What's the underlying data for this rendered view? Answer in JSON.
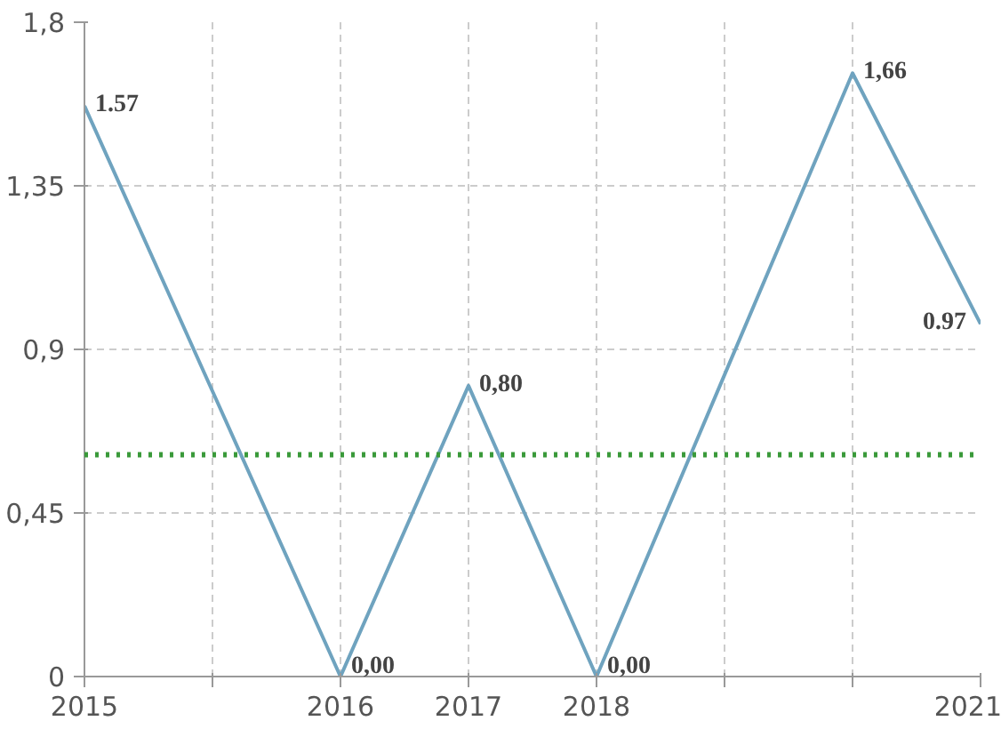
{
  "chart_data": {
    "type": "line",
    "categories": [
      "2015",
      null,
      "2016",
      "2017",
      "2018",
      null,
      null,
      "2021"
    ],
    "series": [
      {
        "color": "#6fa3bf",
        "values": [
          1.57,
          0.785,
          0,
          0.8,
          0,
          0.83,
          1.66,
          0.97
        ],
        "value_labels": [
          "1.57",
          null,
          "0,00",
          "0,80",
          "0,00",
          null,
          "1,66",
          "0.97"
        ]
      }
    ],
    "ylim": [
      0,
      1.8
    ],
    "yticks": [
      {
        "value": 0,
        "label": "0"
      },
      {
        "value": 0.45,
        "label": "0,45"
      },
      {
        "value": 0.9,
        "label": "0,9"
      },
      {
        "value": 1.35,
        "label": "1,35"
      },
      {
        "value": 1.8,
        "label": "1,8"
      }
    ],
    "ref_lines": [
      {
        "axis": "y",
        "value": 0.61,
        "label": null,
        "color": "#3a9a3a",
        "line_style": "dotted"
      }
    ],
    "grid": true,
    "marker": "none",
    "line_style": "solid"
  }
}
